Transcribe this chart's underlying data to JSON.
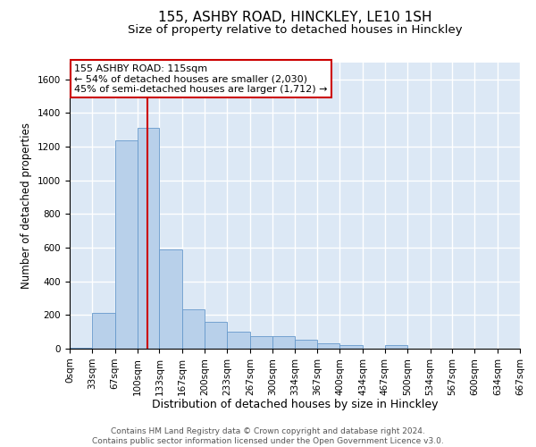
{
  "title_line1": "155, ASHBY ROAD, HINCKLEY, LE10 1SH",
  "title_line2": "Size of property relative to detached houses in Hinckley",
  "xlabel": "Distribution of detached houses by size in Hinckley",
  "ylabel": "Number of detached properties",
  "annotation_line1": "155 ASHBY ROAD: 115sqm",
  "annotation_line2": "← 54% of detached houses are smaller (2,030)",
  "annotation_line3": "45% of semi-detached houses are larger (1,712) →",
  "footer_line1": "Contains HM Land Registry data © Crown copyright and database right 2024.",
  "footer_line2": "Contains public sector information licensed under the Open Government Licence v3.0.",
  "bar_color": "#b8d0ea",
  "bar_edge_color": "#6699cc",
  "background_color": "#dce8f5",
  "vline_color": "#cc0000",
  "vline_x": 115,
  "bin_edges": [
    0,
    33,
    67,
    100,
    133,
    167,
    200,
    233,
    267,
    300,
    334,
    367,
    400,
    434,
    467,
    500,
    534,
    567,
    600,
    634,
    667
  ],
  "bar_heights": [
    5,
    215,
    1240,
    1310,
    590,
    235,
    160,
    100,
    75,
    75,
    55,
    30,
    20,
    0,
    20,
    0,
    0,
    0,
    0,
    0
  ],
  "ylim": [
    0,
    1700
  ],
  "yticks": [
    0,
    200,
    400,
    600,
    800,
    1000,
    1200,
    1400,
    1600
  ],
  "grid_color": "#ffffff",
  "title_fontsize": 11,
  "subtitle_fontsize": 9.5,
  "ylabel_fontsize": 8.5,
  "xlabel_fontsize": 9,
  "tick_fontsize": 7.5,
  "annotation_fontsize": 8,
  "footer_fontsize": 6.5
}
